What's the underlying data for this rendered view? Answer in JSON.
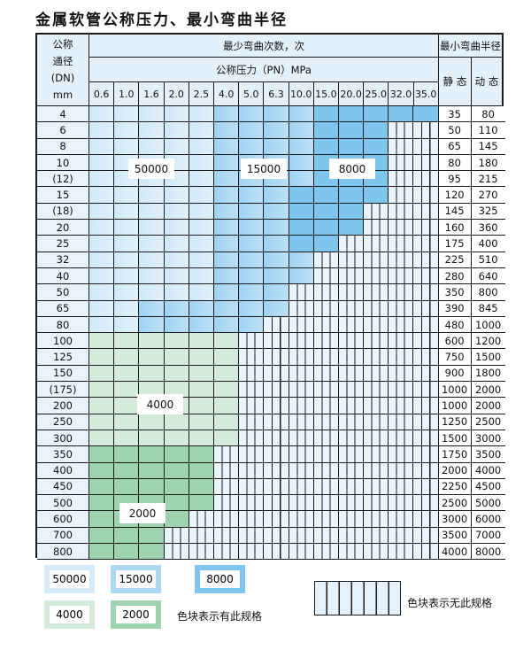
{
  "title": "金属软管公称压力、最小弯曲半径",
  "header": {
    "dn_label": [
      "公称",
      "通径",
      "(DN)",
      "mm"
    ],
    "min_bend_cycles": "最少弯曲次数，次",
    "min_bend_radius": "最小弯曲半径",
    "pressure_label": "公称压力（PN）MPa",
    "pressures": [
      "0.6",
      "1.0",
      "1.6",
      "2.0",
      "2.5",
      "4.0",
      "5.0",
      "6.3",
      "10.0",
      "15.0",
      "20.0",
      "25.0",
      "32.0",
      "35.0"
    ],
    "static": "静 态",
    "dynamic": "动 态"
  },
  "rows": [
    {
      "dn": "4",
      "cells": "AAAAABBBBCCCCC",
      "static": "35",
      "dynamic": "80"
    },
    {
      "dn": "6",
      "cells": "AAAAABBBBCCCXX",
      "static": "50",
      "dynamic": "110"
    },
    {
      "dn": "8",
      "cells": "AAAAABBBBCCCXX",
      "static": "65",
      "dynamic": "145"
    },
    {
      "dn": "10",
      "cells": "AAAAABBBBCCCXX",
      "static": "80",
      "dynamic": "180"
    },
    {
      "dn": "(12)",
      "cells": "AAAAABBBBCCCXX",
      "static": "95",
      "dynamic": "215"
    },
    {
      "dn": "15",
      "cells": "AAAAABBBCCCCXX",
      "static": "120",
      "dynamic": "270"
    },
    {
      "dn": "(18)",
      "cells": "AAAAABBBCCCXXX",
      "static": "145",
      "dynamic": "325"
    },
    {
      "dn": "20",
      "cells": "AAAAABBBCCCXXX",
      "static": "160",
      "dynamic": "360"
    },
    {
      "dn": "25",
      "cells": "AAAAABBBCCXXXX",
      "static": "175",
      "dynamic": "400"
    },
    {
      "dn": "32",
      "cells": "AAAAABBBBXXXXX",
      "static": "225",
      "dynamic": "510"
    },
    {
      "dn": "40",
      "cells": "AAAAABBBBXXXXX",
      "static": "280",
      "dynamic": "640"
    },
    {
      "dn": "50",
      "cells": "AAAAABBBXXXXXX",
      "static": "350",
      "dynamic": "800"
    },
    {
      "dn": "65",
      "cells": "AABBBBBBXXXXXX",
      "static": "390",
      "dynamic": "845"
    },
    {
      "dn": "80",
      "cells": "AABBBBBXXXXXXX",
      "static": "480",
      "dynamic": "1000"
    },
    {
      "dn": "100",
      "cells": "DDDDDDXXXXXXXX",
      "static": "600",
      "dynamic": "1200"
    },
    {
      "dn": "125",
      "cells": "DDDDDDXXXXXXXX",
      "static": "750",
      "dynamic": "1500"
    },
    {
      "dn": "150",
      "cells": "DDDDDDXXXXXXXX",
      "static": "900",
      "dynamic": "1800"
    },
    {
      "dn": "(175)",
      "cells": "DDDDDDXXXXXXXX",
      "static": "1000",
      "dynamic": "2000"
    },
    {
      "dn": "200",
      "cells": "DDDDDDXXXXXXXX",
      "static": "1000",
      "dynamic": "2000"
    },
    {
      "dn": "250",
      "cells": "DDDDDDXXXXXXXX",
      "static": "1250",
      "dynamic": "2500"
    },
    {
      "dn": "300",
      "cells": "DDDDDDXXXXXXXX",
      "static": "1500",
      "dynamic": "3000"
    },
    {
      "dn": "350",
      "cells": "EEEEEXXXXXXXXX",
      "static": "1750",
      "dynamic": "3500"
    },
    {
      "dn": "400",
      "cells": "EEEEEXXXXXXXXX",
      "static": "2000",
      "dynamic": "4000"
    },
    {
      "dn": "450",
      "cells": "EEEEEXXXXXXXXX",
      "static": "2250",
      "dynamic": "4500"
    },
    {
      "dn": "500",
      "cells": "EEEEEXXXXXXXXX",
      "static": "2500",
      "dynamic": "5000"
    },
    {
      "dn": "600",
      "cells": "EEEEXXXXXXXXXX",
      "static": "3000",
      "dynamic": "6000"
    },
    {
      "dn": "700",
      "cells": "EEEXXXXXXXXXXX",
      "static": "3500",
      "dynamic": "7000"
    },
    {
      "dn": "800",
      "cells": "EEEXXXXXXXXXXX",
      "static": "4000",
      "dynamic": "8000"
    }
  ],
  "region_labels": {
    "A": "50000",
    "B": "15000",
    "C": "8000",
    "D": "4000",
    "E": "2000"
  },
  "colors": {
    "A": "#d8ecf9",
    "B": "#acd8f4",
    "C": "#7fc6ef",
    "D": "#d4eadb",
    "E": "#9fd3b0",
    "none": "#eaf4fc"
  },
  "legend": {
    "items": [
      "50000",
      "15000",
      "8000",
      "4000",
      "2000"
    ],
    "has_spec": "色块表示有此规格",
    "no_spec": "色块表示无此规格"
  }
}
